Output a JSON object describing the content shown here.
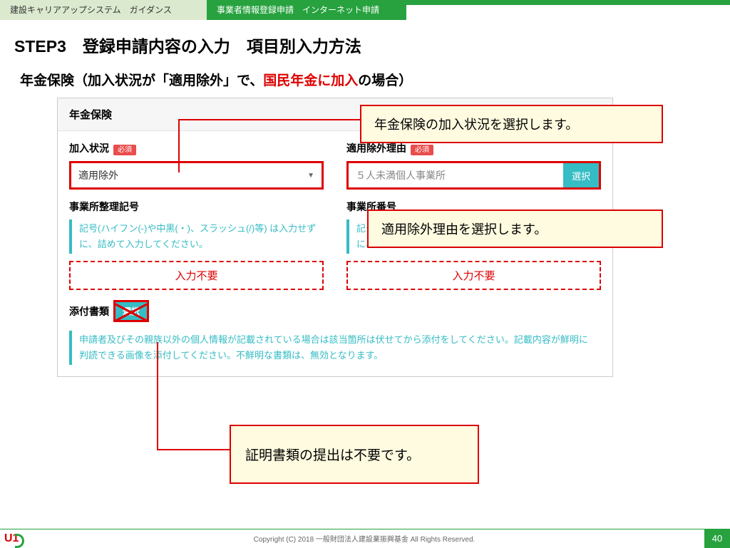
{
  "header": {
    "left": "建設キャリアアップシステム　ガイダンス",
    "center": "事業者情報登録申請　インターネット申請"
  },
  "title": "STEP3　登録申請内容の入力　項目別入力方法",
  "subtitle": {
    "prefix": "年金保険（加入状況が「適用除外」で、",
    "red": "国民年金に加入",
    "suffix": "の場合）"
  },
  "form": {
    "section": "年金保険",
    "required": "必須",
    "left": {
      "label": "加入状況",
      "value": "適用除外",
      "sub_label": "事業所整理記号",
      "note": "記号(ハイフン(-)や中黒(・)、スラッシュ(/)等) は入力せずに、詰めて入力してください。",
      "not_needed": "入力不要"
    },
    "right": {
      "label": "適用除外理由",
      "placeholder": "５人未満個人事業所",
      "btn": "選択",
      "sub_label": "事業所番号",
      "note": "記号(ハイフン(-)や中黒(・)、スラッシュ(/)等) は入力せずに、詰めて入力してください。",
      "not_needed": "入力不要"
    },
    "attach": {
      "label": "添付書類",
      "btn": "選択",
      "note": "申請者及びその親族以外の個人情報が記載されている場合は該当箇所は伏せてから添付をしてください。記載内容が鮮明に判読できる画像を添付してください。不鮮明な書類は、無効となります。"
    }
  },
  "callouts": {
    "c1": "年金保険の加入状況を選択します。",
    "c2": "適用除外理由を選択します。",
    "c3": "証明書類の提出は不要です。"
  },
  "footer": {
    "copyright": "Copyright (C) 2018 一般財団法人建設業振興基金 All Rights Reserved.",
    "page": "40"
  }
}
